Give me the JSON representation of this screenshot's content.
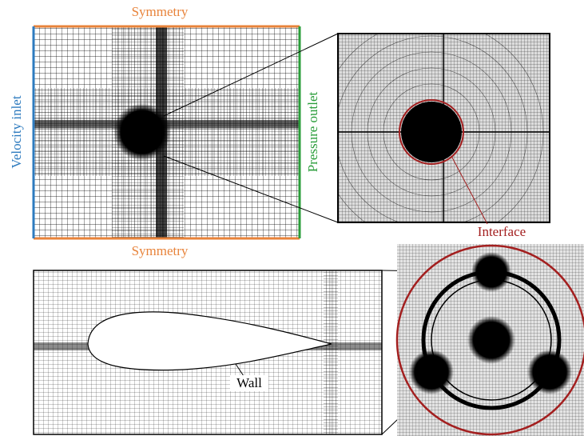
{
  "labels": {
    "symmetry_top": "Symmetry",
    "symmetry_bottom": "Symmetry",
    "velocity_inlet": "Velocity inlet",
    "pressure_outlet": "Pressure outlet",
    "interface": "Interface",
    "wall": "Wall"
  }
}
